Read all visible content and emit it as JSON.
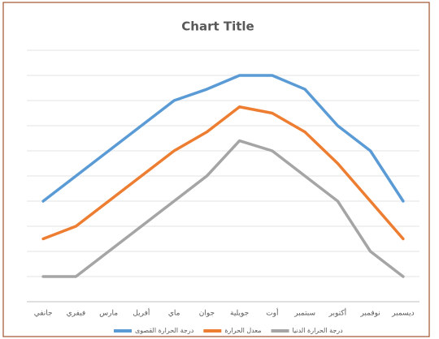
{
  "chart_data": {
    "type": "line",
    "title": "Chart Title",
    "categories": [
      "جانفي",
      "فيفري",
      "مارس",
      "أفريل",
      "ماي",
      "جوان",
      "جويلية",
      "أوت",
      "سبتمبر",
      "أكتوبر",
      "نوفمبر",
      "ديسمبر"
    ],
    "series": [
      {
        "name": "درجة الحرارة القصوى",
        "color": "#5b9bd5",
        "values": [
          4,
          5,
          6,
          7,
          8,
          8.45,
          9,
          9,
          8.45,
          7,
          6,
          4
        ]
      },
      {
        "name": "معدل الحرارة",
        "color": "#ed7d31",
        "values": [
          2.5,
          3,
          4,
          5,
          6,
          6.75,
          7.75,
          7.5,
          6.75,
          5.5,
          4,
          2.5
        ]
      },
      {
        "name": "درجة الحرارة الدنيا",
        "color": "#a5a5a5",
        "values": [
          1,
          1,
          2,
          3,
          4,
          5,
          6.4,
          6,
          5,
          4,
          2,
          1
        ]
      }
    ],
    "ylim": [
      0,
      10
    ],
    "yticks": [
      0,
      1,
      2,
      3,
      4,
      5,
      6,
      7,
      8,
      9,
      10
    ],
    "grid": true
  }
}
